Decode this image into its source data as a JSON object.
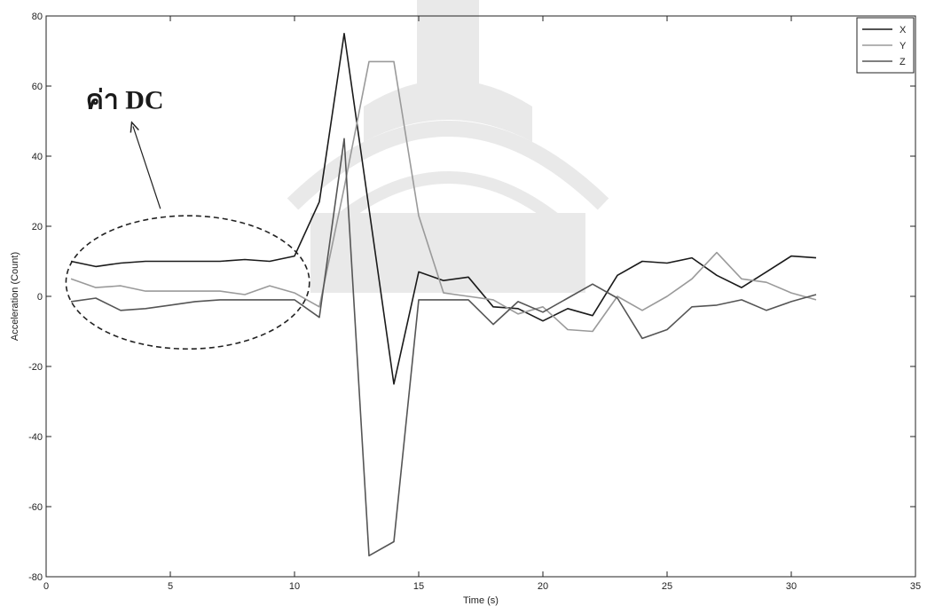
{
  "chart_data": {
    "type": "line",
    "title": "",
    "xlabel": "Time (s)",
    "ylabel": "Acceleration (Count)",
    "xlim": [
      0,
      35
    ],
    "ylim": [
      -80,
      80
    ],
    "xticks": [
      0,
      5,
      10,
      15,
      20,
      25,
      30,
      35
    ],
    "yticks": [
      -80,
      -60,
      -40,
      -20,
      0,
      20,
      40,
      60,
      80
    ],
    "grid": false,
    "legend_position": "top-right",
    "x": [
      1,
      2,
      3,
      4,
      5,
      6,
      7,
      8,
      9,
      10,
      11,
      12,
      13,
      14,
      15,
      16,
      17,
      18,
      19,
      20,
      21,
      22,
      23,
      24,
      25,
      26,
      27,
      28,
      29,
      30,
      31
    ],
    "series": [
      {
        "name": "X",
        "color": "#1a1a1a",
        "values": [
          10,
          8.5,
          9.5,
          10,
          10,
          10,
          10,
          10.5,
          10,
          11.5,
          27,
          75,
          25,
          -25,
          7,
          4.5,
          5.5,
          -3,
          -3.5,
          -7,
          -3.5,
          -5.5,
          6,
          10,
          9.5,
          11,
          6,
          2.5,
          7,
          11.5,
          11
        ]
      },
      {
        "name": "Y",
        "color": "#9a9a9a",
        "values": [
          5,
          2.5,
          3,
          1.5,
          1.5,
          1.5,
          1.5,
          0.5,
          3,
          1,
          -3,
          31,
          67,
          67,
          23,
          1,
          0,
          -1,
          -5,
          -3,
          -9.5,
          -10,
          0,
          -4,
          0,
          5,
          12.5,
          5,
          4,
          1,
          -1
        ]
      },
      {
        "name": "Z",
        "color": "#555555",
        "values": [
          -1.5,
          -0.5,
          -4,
          -3.5,
          -2.5,
          -1.5,
          -1,
          -1,
          -1,
          -1,
          -6,
          45,
          -74,
          -70,
          -1,
          -1,
          -1,
          -8,
          -1.5,
          -4.5,
          -0.5,
          3.5,
          -0.5,
          -12,
          -9.5,
          -3,
          -2.5,
          -1,
          -4,
          -1.5,
          0.5
        ]
      }
    ],
    "annotations": [
      {
        "text": "ค่า DC",
        "target": "dashed ellipse around initial flat segment (x≈1–10)"
      }
    ]
  },
  "annotation": {
    "dc_label": "ค่า DC"
  }
}
